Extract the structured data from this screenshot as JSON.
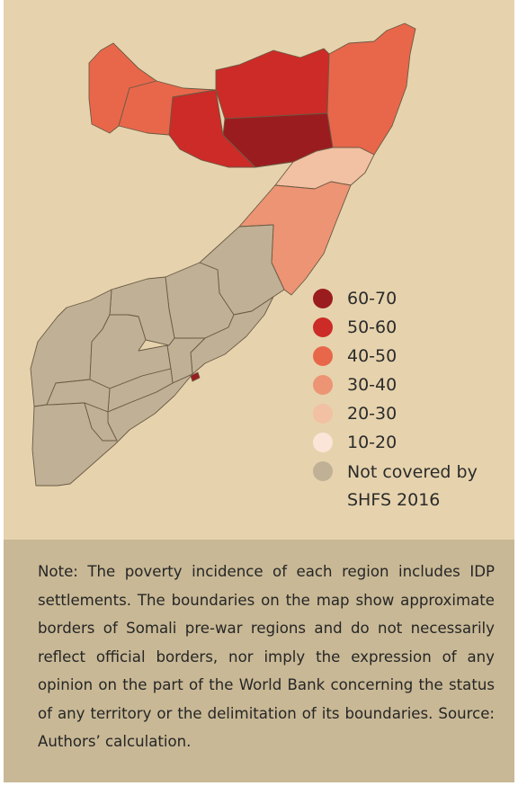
{
  "legend": {
    "items": [
      {
        "label": "60-70",
        "color": "#9b1c1f"
      },
      {
        "label": "50-60",
        "color": "#cc2b27"
      },
      {
        "label": "40-50",
        "color": "#e8674a"
      },
      {
        "label": "30-40",
        "color": "#ec9474"
      },
      {
        "label": "20-30",
        "color": "#f2c0a2"
      },
      {
        "label": "10-20",
        "color": "#fbe5d8"
      },
      {
        "label": "Not covered by SHFS 2016",
        "color": "#bfb096"
      }
    ]
  },
  "regions": [
    {
      "id": "northwest",
      "class": "40-50"
    },
    {
      "id": "west-small",
      "class": "40-50"
    },
    {
      "id": "middle-west",
      "class": "50-60"
    },
    {
      "id": "north-central",
      "class": "50-60"
    },
    {
      "id": "center-dark",
      "class": "60-70"
    },
    {
      "id": "northeast",
      "class": "40-50"
    },
    {
      "id": "east-light",
      "class": "20-30"
    },
    {
      "id": "east-coast",
      "class": "30-40"
    },
    {
      "id": "south-1",
      "class": "Not covered by SHFS 2016"
    },
    {
      "id": "south-2",
      "class": "Not covered by SHFS 2016"
    },
    {
      "id": "south-3",
      "class": "Not covered by SHFS 2016"
    },
    {
      "id": "south-4",
      "class": "Not covered by SHFS 2016"
    },
    {
      "id": "south-5",
      "class": "Not covered by SHFS 2016"
    },
    {
      "id": "south-6",
      "class": "Not covered by SHFS 2016"
    },
    {
      "id": "south-7",
      "class": "Not covered by SHFS 2016"
    },
    {
      "id": "south-8",
      "class": "Not covered by SHFS 2016"
    },
    {
      "id": "south-9",
      "class": "Not covered by SHFS 2016"
    },
    {
      "id": "south-10",
      "class": "Not covered by SHFS 2016"
    },
    {
      "id": "south-11",
      "class": "Not covered by SHFS 2016"
    },
    {
      "id": "mogadishu",
      "class": "60-70"
    }
  ],
  "note": {
    "text": "Note: The poverty incidence of each region includes IDP settlements. The boundaries on the map show approximate borders of Somali pre-war regions and do not necessarily reflect official borders, nor imply the expression of any opinion on the part of the World Bank concerning the status of any territory or the delimitation of its boundaries. Source: Authors’ calculation."
  }
}
